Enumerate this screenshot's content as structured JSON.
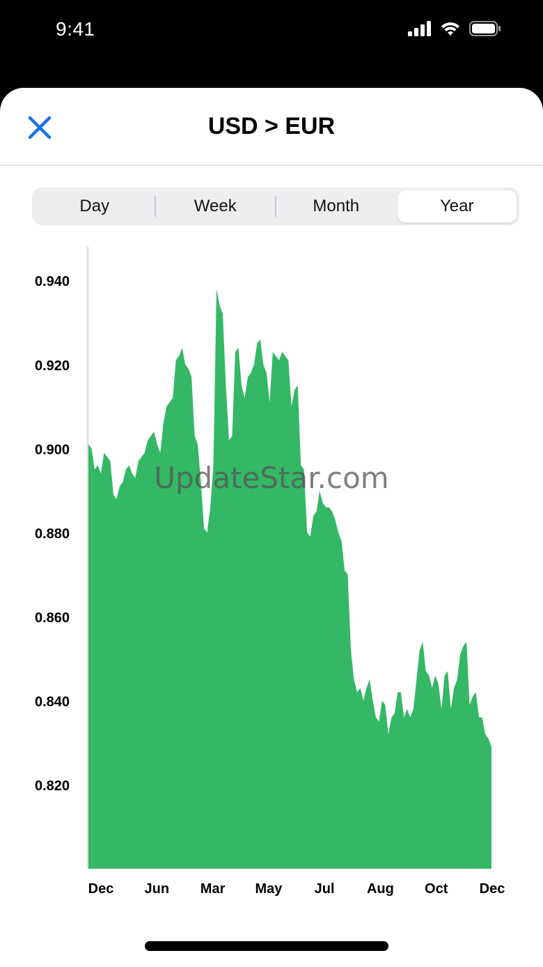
{
  "status_bar": {
    "time": "9:41",
    "icons": [
      "cellular-signal-icon",
      "wifi-icon",
      "battery-icon"
    ]
  },
  "header": {
    "title": "USD > EUR",
    "close_icon": "close-icon",
    "accent_color": "#1a73e8"
  },
  "segments": {
    "items": [
      {
        "label": "Day",
        "selected": false
      },
      {
        "label": "Week",
        "selected": false
      },
      {
        "label": "Month",
        "selected": false
      },
      {
        "label": "Year",
        "selected": true
      }
    ]
  },
  "watermark": "UpdateStar.com",
  "chart_data": {
    "type": "area",
    "color": "#34b866",
    "ylim": [
      0.8,
      0.948
    ],
    "y_ticks": [
      0.82,
      0.84,
      0.86,
      0.88,
      0.9,
      0.92,
      0.94
    ],
    "y_tick_labels": [
      "0.820",
      "0.840",
      "0.860",
      "0.880",
      "0.900",
      "0.920",
      "0.940"
    ],
    "x_tick_labels": [
      "Dec",
      "Jun",
      "Mar",
      "May",
      "Jul",
      "Aug",
      "Oct",
      "Dec"
    ],
    "grid": false,
    "values": [
      0.901,
      0.9,
      0.895,
      0.896,
      0.894,
      0.899,
      0.898,
      0.897,
      0.889,
      0.888,
      0.891,
      0.892,
      0.895,
      0.896,
      0.894,
      0.893,
      0.897,
      0.898,
      0.899,
      0.902,
      0.903,
      0.904,
      0.901,
      0.899,
      0.906,
      0.91,
      0.911,
      0.912,
      0.921,
      0.922,
      0.924,
      0.92,
      0.919,
      0.917,
      0.903,
      0.901,
      0.892,
      0.881,
      0.88,
      0.886,
      0.896,
      0.938,
      0.934,
      0.932,
      0.915,
      0.902,
      0.903,
      0.923,
      0.924,
      0.915,
      0.912,
      0.917,
      0.918,
      0.92,
      0.925,
      0.926,
      0.92,
      0.918,
      0.911,
      0.923,
      0.922,
      0.921,
      0.923,
      0.922,
      0.921,
      0.91,
      0.914,
      0.915,
      0.896,
      0.895,
      0.88,
      0.879,
      0.884,
      0.885,
      0.89,
      0.887,
      0.886,
      0.886,
      0.885,
      0.883,
      0.88,
      0.878,
      0.871,
      0.87,
      0.852,
      0.845,
      0.842,
      0.843,
      0.84,
      0.843,
      0.845,
      0.84,
      0.836,
      0.835,
      0.84,
      0.839,
      0.832,
      0.836,
      0.837,
      0.842,
      0.842,
      0.836,
      0.838,
      0.836,
      0.838,
      0.845,
      0.852,
      0.854,
      0.847,
      0.846,
      0.843,
      0.846,
      0.844,
      0.838,
      0.846,
      0.847,
      0.838,
      0.843,
      0.845,
      0.851,
      0.853,
      0.854,
      0.839,
      0.841,
      0.842,
      0.836,
      0.836,
      0.832,
      0.831,
      0.829
    ]
  }
}
